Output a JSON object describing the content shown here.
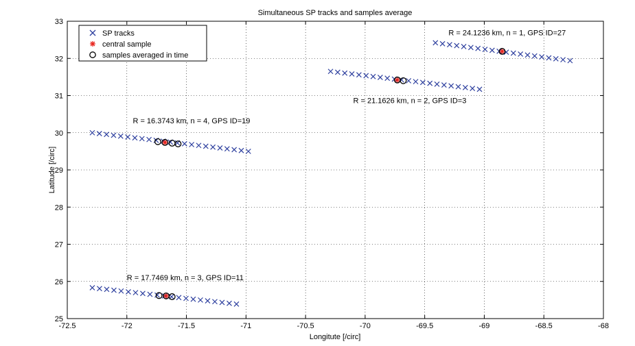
{
  "chart_data": {
    "type": "scatter",
    "title": "Simultaneous SP tracks and samples average",
    "xlabel": "Longitute [/circ]",
    "ylabel": "Latitude [/circ]",
    "xlim": [
      -72.5,
      -68
    ],
    "ylim": [
      25,
      33
    ],
    "x_ticks": [
      "-72.5",
      "-72",
      "-71.5",
      "-71",
      "-70.5",
      "-70",
      "-69.5",
      "-69",
      "-68.5",
      "-68"
    ],
    "y_ticks": [
      "25",
      "26",
      "27",
      "28",
      "29",
      "30",
      "31",
      "32",
      "33"
    ],
    "x_tick_values": [
      -72.5,
      -72,
      -71.5,
      -71,
      -70.5,
      -70,
      -69.5,
      -69,
      -68.5,
      -68
    ],
    "y_tick_values": [
      25,
      26,
      27,
      28,
      29,
      30,
      31,
      32,
      33
    ],
    "grid": true,
    "legend_position": "top-left",
    "legend": [
      {
        "label": "SP tracks",
        "marker": "x",
        "color": "#2d3f9e"
      },
      {
        "label": "central sample",
        "marker": "*",
        "color": "#e8261f"
      },
      {
        "label": "samples averaged in time",
        "marker": "o",
        "color": "#000000"
      }
    ],
    "series": [
      {
        "name": "SP tracks",
        "marker": "x",
        "color": "#2d3f9e",
        "tracks": [
          {
            "x_start": -69.41,
            "y_start": 32.42,
            "x_end": -68.28,
            "y_end": 31.94,
            "count": 20
          },
          {
            "x_start": -70.29,
            "y_start": 31.65,
            "x_end": -69.04,
            "y_end": 31.17,
            "count": 22
          },
          {
            "x_start": -72.29,
            "y_start": 30.0,
            "x_end": -70.98,
            "y_end": 29.5,
            "count": 23
          },
          {
            "x_start": -72.29,
            "y_start": 25.83,
            "x_end": -71.08,
            "y_end": 25.39,
            "count": 21
          }
        ]
      },
      {
        "name": "central sample",
        "marker": "*",
        "color": "#e8261f",
        "points": [
          {
            "x": -68.85,
            "y": 32.19
          },
          {
            "x": -69.73,
            "y": 31.42
          },
          {
            "x": -71.68,
            "y": 29.74
          },
          {
            "x": -71.67,
            "y": 25.61
          }
        ]
      },
      {
        "name": "samples averaged in time",
        "marker": "o",
        "color": "#000000",
        "points": [
          {
            "x": -68.85,
            "y": 32.19
          },
          {
            "x": -69.73,
            "y": 31.42
          },
          {
            "x": -69.68,
            "y": 31.4
          },
          {
            "x": -71.74,
            "y": 29.76
          },
          {
            "x": -71.68,
            "y": 29.74
          },
          {
            "x": -71.62,
            "y": 29.72
          },
          {
            "x": -71.57,
            "y": 29.7
          },
          {
            "x": -71.73,
            "y": 25.62
          },
          {
            "x": -71.67,
            "y": 25.61
          },
          {
            "x": -71.62,
            "y": 25.59
          }
        ]
      }
    ],
    "annotations": [
      {
        "text": "R = 24.1236 km, n = 1, GPS ID=27",
        "x": -69.3,
        "y": 32.62
      },
      {
        "text": "R = 21.1626 km, n = 2, GPS ID=3",
        "x": -70.1,
        "y": 30.8
      },
      {
        "text": "R = 16.3743 km, n = 4, GPS ID=19",
        "x": -71.95,
        "y": 30.25
      },
      {
        "text": "R = 17.7469 km, n = 3, GPS ID=11",
        "x": -72.0,
        "y": 26.03
      }
    ]
  }
}
